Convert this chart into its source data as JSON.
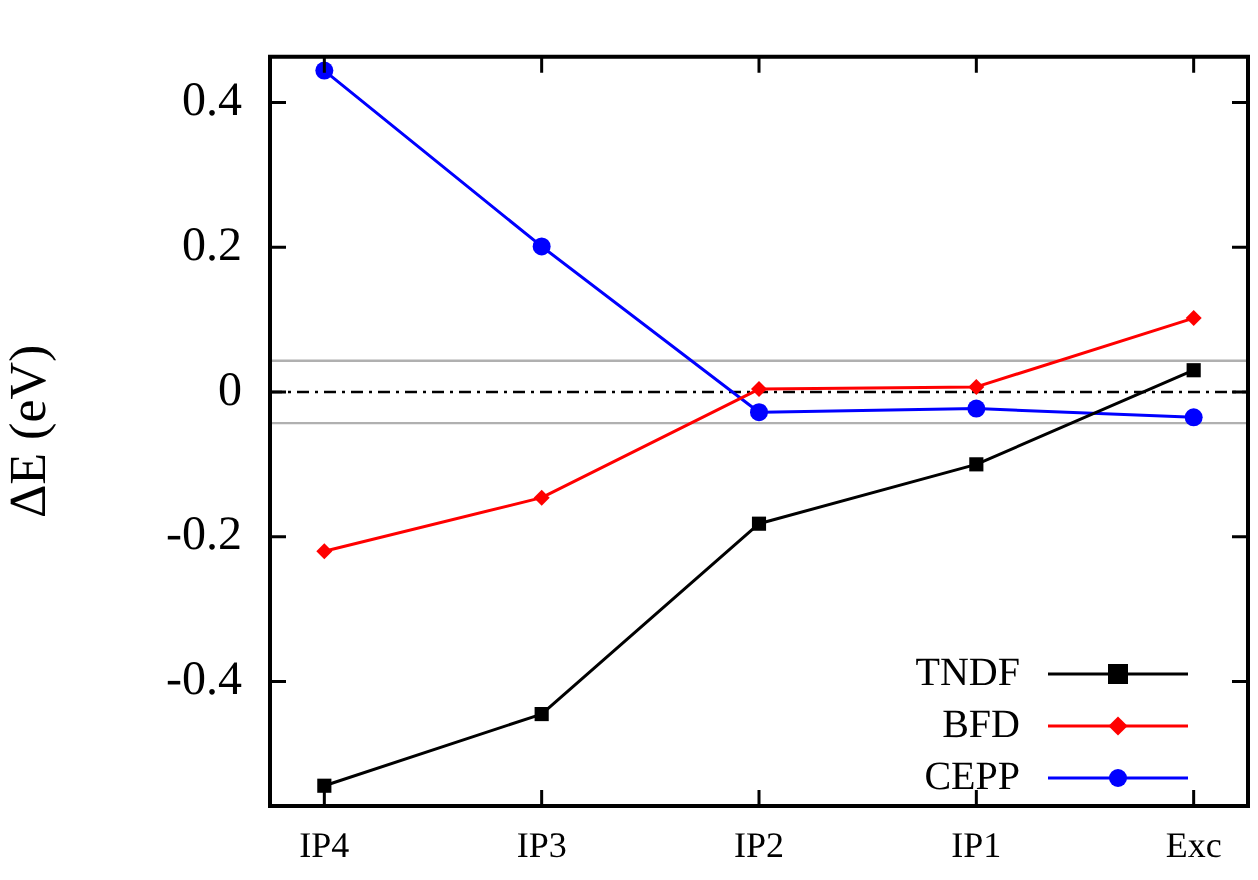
{
  "chart_data": {
    "type": "line",
    "ylabel": "ΔE (eV)",
    "categories": [
      "IP4",
      "IP3",
      "IP2",
      "IP1",
      "Exc"
    ],
    "ylim": [
      -0.572,
      0.463
    ],
    "yticks": [
      {
        "value": -0.4,
        "label": "-0.4"
      },
      {
        "value": -0.2,
        "label": "-0.2"
      },
      {
        "value": 0,
        "label": "0"
      },
      {
        "value": 0.2,
        "label": "0.2"
      },
      {
        "value": 0.4,
        "label": "0.4"
      }
    ],
    "series": [
      {
        "name": "TNDF",
        "color": "#000000",
        "marker": "square",
        "values": [
          -0.544,
          -0.445,
          -0.182,
          -0.1,
          0.03
        ]
      },
      {
        "name": "BFD",
        "color": "#ff0000",
        "marker": "diamond",
        "values": [
          -0.22,
          -0.146,
          0.004,
          0.007,
          0.102
        ]
      },
      {
        "name": "CEPP",
        "color": "#0000ff",
        "marker": "circle",
        "values": [
          0.444,
          0.201,
          -0.028,
          -0.023,
          -0.035
        ]
      }
    ],
    "ref_lines": [
      {
        "axis": "y",
        "value": 0.043,
        "color": "#b0b0b0",
        "line_style": "solid"
      },
      {
        "axis": "y",
        "value": -0.043,
        "color": "#b0b0b0",
        "line_style": "solid"
      },
      {
        "axis": "y",
        "value": 0,
        "color": "#000000",
        "line_style": "dashdot"
      }
    ],
    "legend": "bottom right",
    "grid": false,
    "line_style": "solid"
  }
}
